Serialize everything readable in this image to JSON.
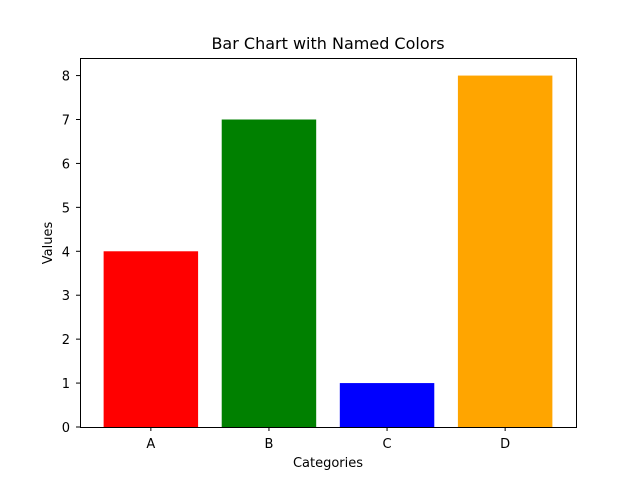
{
  "chart_data": {
    "type": "bar",
    "title": "Bar Chart with Named Colors",
    "xlabel": "Categories",
    "ylabel": "Values",
    "categories": [
      "A",
      "B",
      "C",
      "D"
    ],
    "values": [
      4,
      7,
      1,
      8
    ],
    "bar_colors": [
      "#ff0000",
      "#008000",
      "#0000ff",
      "#ffa500"
    ],
    "ylim": [
      0,
      8.4
    ],
    "yticks": [
      0,
      1,
      2,
      3,
      4,
      5,
      6,
      7,
      8
    ],
    "grid": false
  }
}
